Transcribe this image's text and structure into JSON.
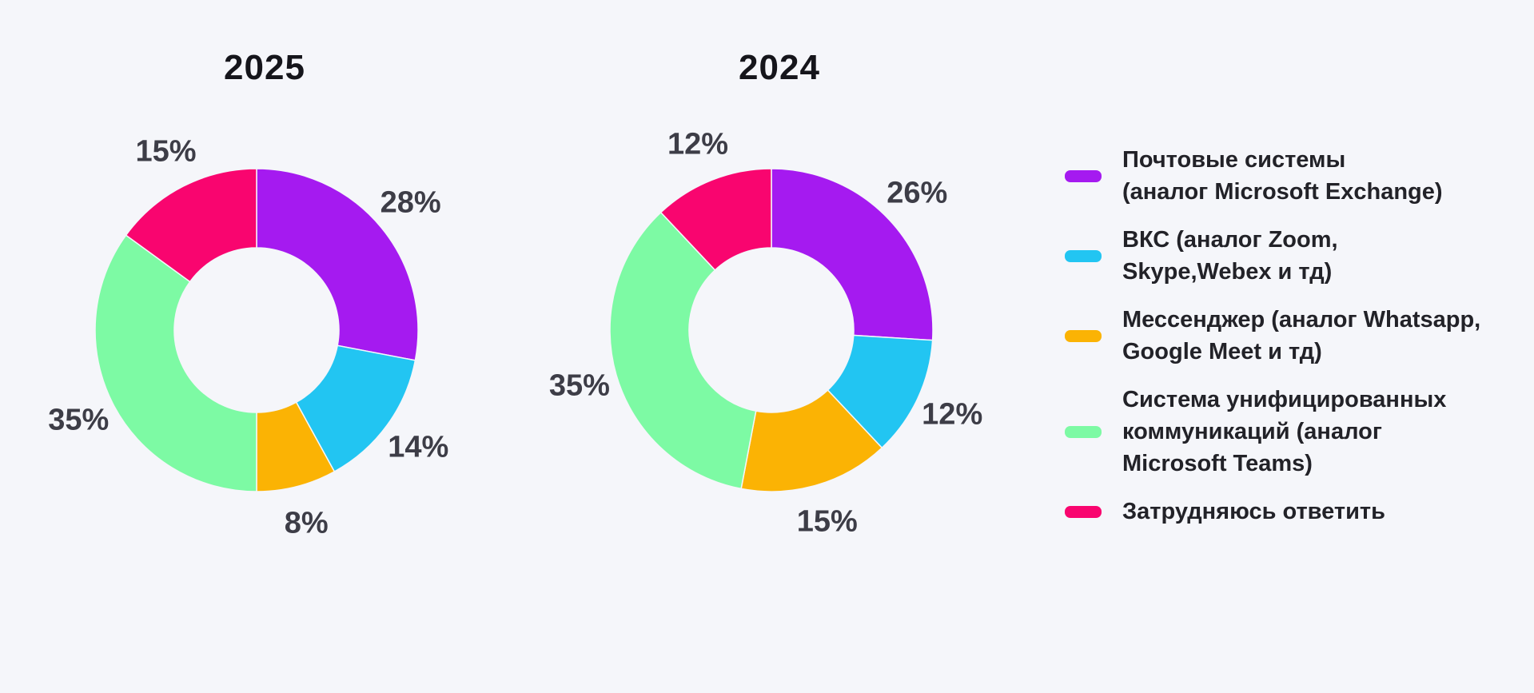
{
  "page": {
    "background": "#F5F6FA"
  },
  "chart_data": {
    "type": "pie",
    "subtype": "donut",
    "unit": "percent",
    "direction": "clockwise",
    "start_angle_deg": 0,
    "inner_radius_ratio": 0.51,
    "legend_position": "right",
    "label_format": "{value}%",
    "categories": [
      "Почтовые системы (аналог Microsoft Exchange)",
      "ВКС (аналог Zoom, Skype,Webex и тд)",
      "Мессенджер (аналог Whatsapp, Google Meet и тд)",
      "Система унифицированных коммуникаций (аналог Microsoft Teams)",
      "Затрудняюсь ответить"
    ],
    "colors": [
      "#A51AF0",
      "#22C5F2",
      "#FBB304",
      "#7DFAA4",
      "#F9056F"
    ],
    "series": [
      {
        "name": "2025",
        "values": [
          28,
          14,
          8,
          35,
          15
        ]
      },
      {
        "name": "2024",
        "values": [
          26,
          12,
          15,
          35,
          12
        ]
      }
    ]
  },
  "legend": {
    "items": [
      {
        "lines": [
          "Почтовые системы",
          "(аналог Microsoft Exchange)"
        ],
        "color": "#A51AF0"
      },
      {
        "lines": [
          "ВКС (аналог Zoom,",
          "Skype,Webex и тд)"
        ],
        "color": "#22C5F2"
      },
      {
        "lines": [
          "Мессенджер (аналог Whatsapp,",
          "Google Meet и тд)"
        ],
        "color": "#FBB304"
      },
      {
        "lines": [
          "Система унифицированных",
          "коммуникаций (аналог",
          "Microsoft Teams)"
        ],
        "color": "#7DFAA4"
      },
      {
        "lines": [
          "Затрудняюсь ответить"
        ],
        "color": "#F9056F"
      }
    ]
  },
  "colors": {
    "title_text": "#15151B",
    "percent_label_text": "#3D3D47",
    "legend_text": "#222228",
    "background": "#F5F6FA"
  }
}
